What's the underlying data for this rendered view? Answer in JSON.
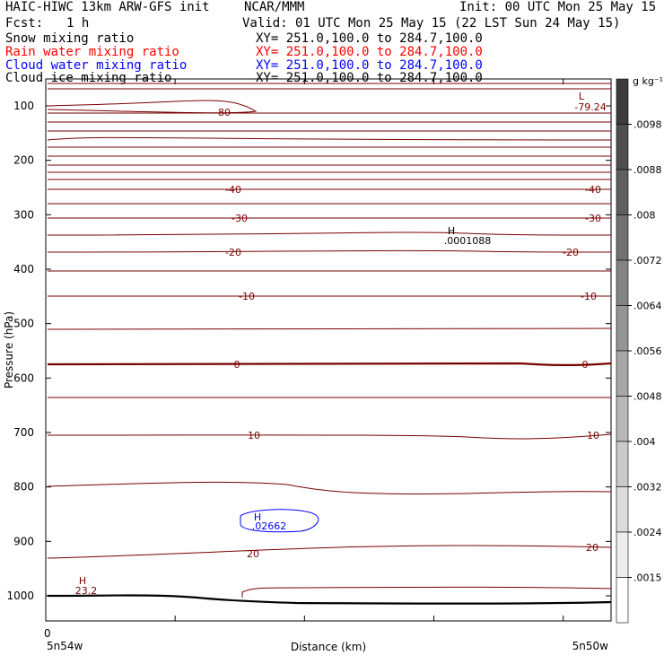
{
  "header": {
    "left_title": "HAIC-HIWC 13km ARW-GFS init",
    "center_title": "NCAR/MMM",
    "init": "Init: 00 UTC Mon 25 May 15",
    "fcst_label": "Fcst:",
    "fcst_value": "1 h",
    "valid": "Valid: 01 UTC Mon 25 May 15 (22 LST Sun 24 May 15)",
    "fields": [
      {
        "name": "Snow mixing ratio",
        "xy": "XY= 251.0,100.0 to 284.7,100.0",
        "color": "#000000"
      },
      {
        "name": "Rain water mixing ratio",
        "xy": "XY= 251.0,100.0 to 284.7,100.0",
        "color": "#ff0000"
      },
      {
        "name": "Cloud water mixing ratio",
        "xy": "XY= 251.0,100.0 to 284.7,100.0",
        "color": "#0000ff"
      },
      {
        "name": "Cloud ice mixing ratio",
        "xy": "XY= 251.0,100.0 to 284.7,100.0",
        "color": "#000000"
      }
    ]
  },
  "chart_data": {
    "type": "contour",
    "ylabel": "Pressure (hPa)",
    "xlabel": "Distance (km)",
    "y_ticks": [
      100,
      200,
      300,
      400,
      500,
      600,
      700,
      800,
      900,
      1000
    ],
    "x_tick_label": "0",
    "x_left_label": "5n54w",
    "x_right_label": "5n50w",
    "colorbar": {
      "unit": "g kg⁻¹",
      "labels": [
        ".0098",
        ".0088",
        ".008",
        ".0072",
        ".0064",
        ".0056",
        ".0048",
        ".004",
        ".0032",
        ".0024",
        ".0015"
      ]
    },
    "temperature_contours": {
      "color": "#7a0000",
      "labels": [
        {
          "text": "-80",
          "p": 110
        },
        {
          "text": "-40",
          "p": 250
        },
        {
          "text": "-30",
          "p": 297
        },
        {
          "text": "-20",
          "p": 350
        },
        {
          "text": "-10",
          "p": 430
        },
        {
          "text": "0",
          "p": 580
        },
        {
          "text": "10",
          "p": 720
        },
        {
          "text": "20",
          "p": 915
        }
      ],
      "right_labels": [
        "-40",
        "-30",
        "-20",
        "-10",
        "0",
        "10",
        "20"
      ]
    },
    "extrema": [
      {
        "type": "L",
        "value": "-79.24",
        "color": "#7a0000"
      },
      {
        "type": "H",
        "value": ".0001088",
        "color": "#000000"
      },
      {
        "type": "H",
        "value": "23.2",
        "color": "#7a0000"
      },
      {
        "type": "H",
        "value": ".02662",
        "color": "#0000ff"
      }
    ]
  }
}
